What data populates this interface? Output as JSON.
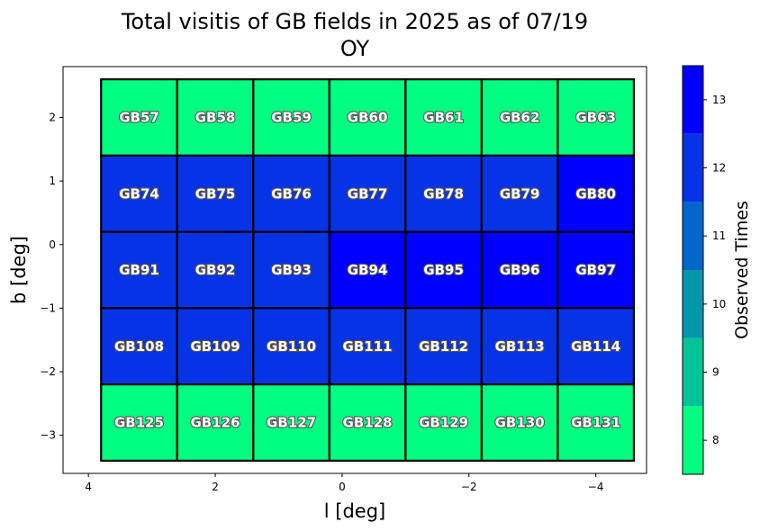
{
  "chart_data": {
    "type": "heatmap",
    "title": "Total visitis of GB fields in 2025 as of 07/19",
    "subtitle": "OY",
    "xlabel": "l [deg]",
    "ylabel": "b [deg]",
    "xlim": [
      4.4,
      -4.8
    ],
    "ylim": [
      -3.6,
      2.8
    ],
    "x_inverted": true,
    "x_ticks": [
      4,
      2,
      0,
      -2,
      -4
    ],
    "x_tick_labels": [
      "4",
      "2",
      "0",
      "−2",
      "−4"
    ],
    "y_ticks": [
      2,
      1,
      0,
      -1,
      -2,
      -3
    ],
    "y_tick_labels": [
      "2",
      "1",
      "0",
      "−1",
      "−2",
      "−3"
    ],
    "column_l_centers": [
      3.2,
      2.0,
      0.8,
      -0.4,
      -1.6,
      -2.8,
      -4.0
    ],
    "row_b_centers": [
      2.0,
      0.8,
      -0.4,
      -1.6,
      -2.8
    ],
    "cell_width_deg": 1.2,
    "cell_height_deg": 1.2,
    "fields": [
      [
        "GB57",
        "GB58",
        "GB59",
        "GB60",
        "GB61",
        "GB62",
        "GB63"
      ],
      [
        "GB74",
        "GB75",
        "GB76",
        "GB77",
        "GB78",
        "GB79",
        "GB80"
      ],
      [
        "GB91",
        "GB92",
        "GB93",
        "GB94",
        "GB95",
        "GB96",
        "GB97"
      ],
      [
        "GB108",
        "GB109",
        "GB110",
        "GB111",
        "GB112",
        "GB113",
        "GB114"
      ],
      [
        "GB125",
        "GB126",
        "GB127",
        "GB128",
        "GB129",
        "GB130",
        "GB131"
      ]
    ],
    "values": [
      [
        8,
        8,
        8,
        8,
        8,
        8,
        8
      ],
      [
        12,
        12,
        12,
        12,
        12,
        12,
        13
      ],
      [
        12,
        12,
        12,
        13,
        13,
        13,
        13
      ],
      [
        12,
        12,
        12,
        12,
        12,
        12,
        12
      ],
      [
        8,
        8,
        8,
        8,
        8,
        8,
        8
      ]
    ],
    "grid": false,
    "colorbar": {
      "label": "Observed Times",
      "range": [
        7.5,
        13.5
      ],
      "ticks": [
        8,
        9,
        10,
        11,
        12,
        13
      ],
      "levels": [
        {
          "value": 8,
          "color": "#00ff80"
        },
        {
          "value": 9,
          "color": "#00c498"
        },
        {
          "value": 10,
          "color": "#0097aa"
        },
        {
          "value": 11,
          "color": "#0066cc"
        },
        {
          "value": 12,
          "color": "#0733e6"
        },
        {
          "value": 13,
          "color": "#0000ff"
        }
      ]
    }
  }
}
